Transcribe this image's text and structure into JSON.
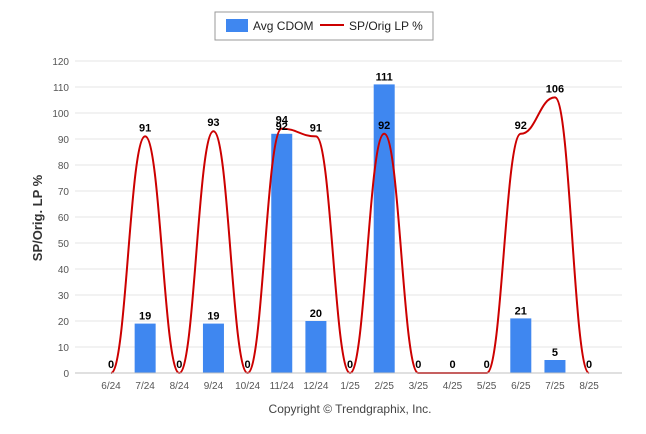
{
  "chart_data": {
    "type": "bar",
    "categories": [
      "6/24",
      "7/24",
      "8/24",
      "9/24",
      "10/24",
      "11/24",
      "12/24",
      "1/25",
      "2/25",
      "3/25",
      "4/25",
      "5/25",
      "6/25",
      "7/25",
      "8/25"
    ],
    "series": [
      {
        "name": "Avg CDOM",
        "type": "bar",
        "color": "#3f87f0",
        "values": [
          0,
          19,
          0,
          19,
          0,
          92,
          20,
          0,
          111,
          0,
          0,
          0,
          21,
          5,
          0
        ]
      },
      {
        "name": "SP/Orig LP %",
        "type": "line",
        "color": "#cc0000",
        "values": [
          0,
          91,
          0,
          93,
          0,
          94,
          91,
          0,
          92,
          0,
          0,
          0,
          92,
          106,
          0
        ]
      }
    ],
    "ylabel": "SP/Orig. LP %",
    "ylim": [
      0,
      120
    ],
    "yticks": [
      0,
      10,
      20,
      30,
      40,
      50,
      60,
      70,
      80,
      90,
      100,
      110,
      120
    ],
    "grid": true,
    "legend": "top-center"
  },
  "footer": {
    "copyright": "Copyright © Trendgraphix, Inc."
  }
}
